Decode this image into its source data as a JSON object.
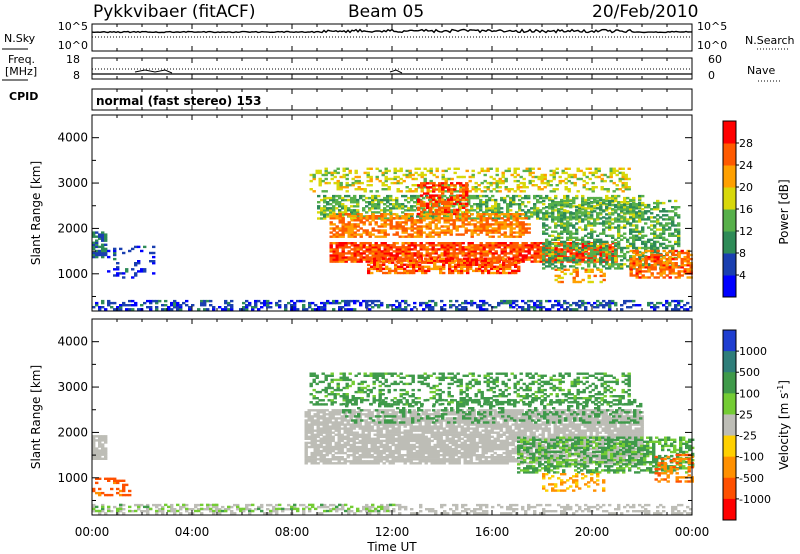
{
  "header": {
    "station": "Pykkvibaer (fitACF)",
    "beam": "Beam 05",
    "date": "20/Feb/2010"
  },
  "strips": {
    "nsky_label": "N.Sky",
    "nsky_ticks": [
      "10^5",
      "10^0"
    ],
    "nsearch_label": "N.Search",
    "nsearch_ticks": [
      "10^5",
      "10^0"
    ],
    "freq_label_1": "Freq.",
    "freq_label_2": "[MHz]",
    "freq_ticks": [
      "18",
      "8"
    ],
    "nave_label": "Nave",
    "nave_ticks": [
      "60",
      "0"
    ],
    "cpid_label": "CPID",
    "cpid_text": "normal (fast stereo) 153"
  },
  "axes": {
    "ylabel": "Slant Range [km]",
    "xlabel": "Time UT",
    "yticks": [
      "4000",
      "3000",
      "2000",
      "1000"
    ],
    "xticks": [
      "00:00",
      "04:00",
      "08:00",
      "12:00",
      "16:00",
      "20:00",
      "00:00"
    ]
  },
  "colorbars": {
    "power": {
      "label": "Power [dB]",
      "ticks": [
        "28",
        "24",
        "20",
        "16",
        "12",
        "8",
        "4"
      ],
      "colors": [
        "#0000ff",
        "#1a3fb0",
        "#2e8b57",
        "#57b04a",
        "#d8d80a",
        "#ffa000",
        "#ff5a00",
        "#ff0000"
      ]
    },
    "velocity": {
      "label": "Velocity [m s",
      "label_sup": "-1",
      "label_end": "]",
      "ticks": [
        "1000",
        "500",
        "100",
        "25",
        "-25",
        "-100",
        "-500",
        "-1000"
      ],
      "colors": [
        "#1f3ed0",
        "#2f7e7a",
        "#3f9a4a",
        "#74cc34",
        "#bdbdb6",
        "#ffd000",
        "#ff9000",
        "#ff5000",
        "#ff0000"
      ]
    }
  },
  "chart_data": [
    {
      "type": "heatmap",
      "title": "Power",
      "xlabel": "Time UT",
      "ylabel": "Slant Range [km]",
      "xlim": [
        0,
        24
      ],
      "ylim": [
        180,
        4500
      ],
      "zlabel": "Power [dB]",
      "zlim": [
        0,
        30
      ],
      "regions": [
        {
          "t": [
            0.0,
            24.0
          ],
          "r": [
            200,
            420
          ],
          "v": 6,
          "d": 0.45
        },
        {
          "t": [
            0.0,
            0.6
          ],
          "r": [
            1350,
            1900
          ],
          "v": 8,
          "d": 0.8
        },
        {
          "t": [
            0.6,
            2.5
          ],
          "r": [
            900,
            1600
          ],
          "v": 5,
          "d": 0.2
        },
        {
          "t": [
            8.7,
            21.5
          ],
          "r": [
            2800,
            3300
          ],
          "v": 18,
          "d": 0.35
        },
        {
          "t": [
            9.0,
            22.0
          ],
          "r": [
            2200,
            2700
          ],
          "v": 14,
          "d": 0.55
        },
        {
          "t": [
            9.5,
            17.5
          ],
          "r": [
            1800,
            2300
          ],
          "v": 24,
          "d": 0.6
        },
        {
          "t": [
            9.5,
            21.0
          ],
          "r": [
            1250,
            1700
          ],
          "v": 27,
          "d": 0.8
        },
        {
          "t": [
            11.0,
            17.0
          ],
          "r": [
            1000,
            1350
          ],
          "v": 26,
          "d": 0.7
        },
        {
          "t": [
            13.0,
            15.0
          ],
          "r": [
            2300,
            3000
          ],
          "v": 27,
          "d": 0.55
        },
        {
          "t": [
            18.0,
            23.5
          ],
          "r": [
            1100,
            2600
          ],
          "v": 13,
          "d": 0.5
        },
        {
          "t": [
            21.5,
            24.0
          ],
          "r": [
            900,
            1500
          ],
          "v": 25,
          "d": 0.65
        },
        {
          "t": [
            18.5,
            20.5
          ],
          "r": [
            800,
            1100
          ],
          "v": 22,
          "d": 0.4
        }
      ]
    },
    {
      "type": "heatmap",
      "title": "Velocity",
      "xlabel": "Time UT",
      "ylabel": "Slant Range [km]",
      "xlim": [
        0,
        24
      ],
      "ylim": [
        180,
        4500
      ],
      "zlabel": "Velocity [m s-1]",
      "zlim": [
        -1000,
        1000
      ],
      "regions": [
        {
          "t": [
            0.0,
            24.0
          ],
          "r": [
            200,
            420
          ],
          "v": 0,
          "d": 0.35
        },
        {
          "t": [
            0.0,
            12.0
          ],
          "r": [
            250,
            400
          ],
          "v": 80,
          "d": 0.2
        },
        {
          "t": [
            0.0,
            0.6
          ],
          "r": [
            1400,
            1900
          ],
          "v": 0,
          "d": 0.8
        },
        {
          "t": [
            0.0,
            1.5
          ],
          "r": [
            600,
            1000
          ],
          "v": -600,
          "d": 0.35
        },
        {
          "t": [
            8.7,
            21.5
          ],
          "r": [
            2600,
            3300
          ],
          "v": 150,
          "d": 0.4
        },
        {
          "t": [
            8.5,
            22.0
          ],
          "r": [
            1300,
            2500
          ],
          "v": 0,
          "d": 0.8
        },
        {
          "t": [
            10.0,
            22.0
          ],
          "r": [
            2200,
            2700
          ],
          "v": 200,
          "d": 0.25
        },
        {
          "t": [
            17.0,
            24.0
          ],
          "r": [
            1100,
            1900
          ],
          "v": 120,
          "d": 0.55
        },
        {
          "t": [
            18.0,
            20.5
          ],
          "r": [
            700,
            1100
          ],
          "v": -120,
          "d": 0.35
        },
        {
          "t": [
            22.5,
            24.0
          ],
          "r": [
            900,
            1500
          ],
          "v": -400,
          "d": 0.4
        }
      ]
    }
  ]
}
